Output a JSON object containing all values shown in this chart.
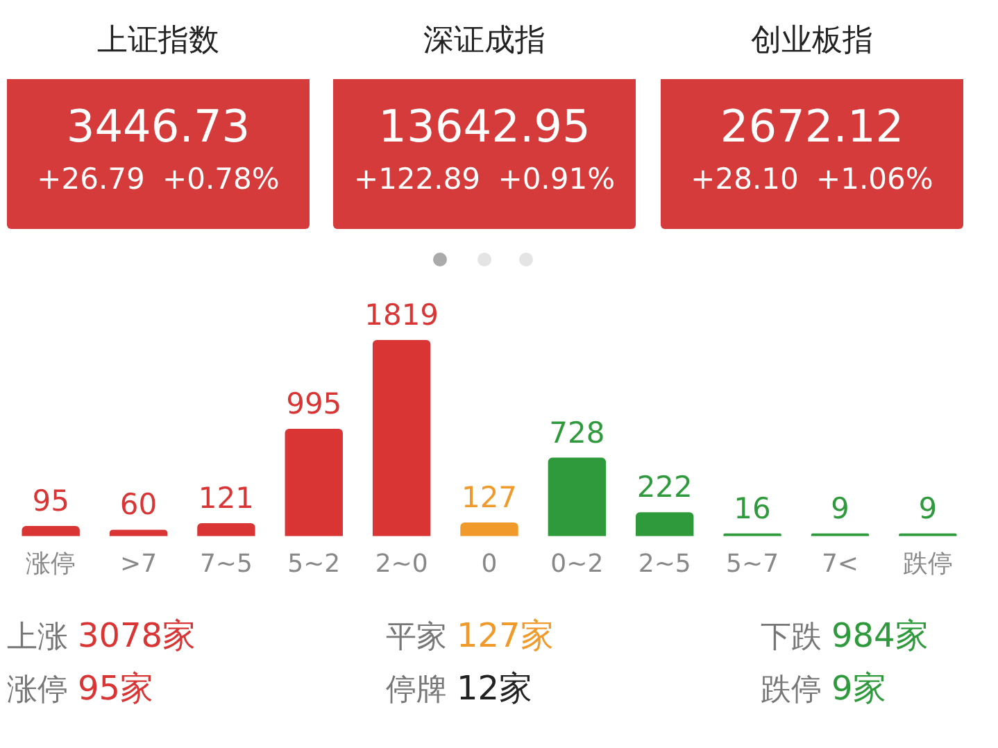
{
  "chart_data": [
    {
      "type": "other",
      "title": "上证指数",
      "annotations": [
        "3446.73",
        "+26.79",
        "+0.78%"
      ]
    },
    {
      "type": "other",
      "title": "深证成指",
      "annotations": [
        "13642.95",
        "+122.89",
        "+0.91%"
      ]
    },
    {
      "type": "other",
      "title": "创业板指",
      "annotations": [
        "2672.12",
        "+28.10",
        "+1.06%"
      ]
    },
    {
      "type": "bar",
      "categories": [
        "涨停",
        ">7",
        "7~5",
        "5~2",
        "2~0",
        "0",
        "0~2",
        "2~5",
        "5~7",
        "7<",
        "跌停"
      ],
      "values": [
        95,
        60,
        121,
        995,
        1819,
        127,
        728,
        222,
        16,
        9,
        9
      ],
      "colors": [
        "#d93535",
        "#d93535",
        "#d93535",
        "#d93535",
        "#d93535",
        "#f09a2c",
        "#2f9a3c",
        "#2f9a3c",
        "#2f9a3c",
        "#2f9a3c",
        "#2f9a3c"
      ],
      "data_labels": true,
      "annotations": [
        "上涨 3078家",
        "平家 127家",
        "下跌 984家",
        "涨停 95家",
        "停牌 12家",
        "跌停 9家"
      ]
    }
  ]
}
